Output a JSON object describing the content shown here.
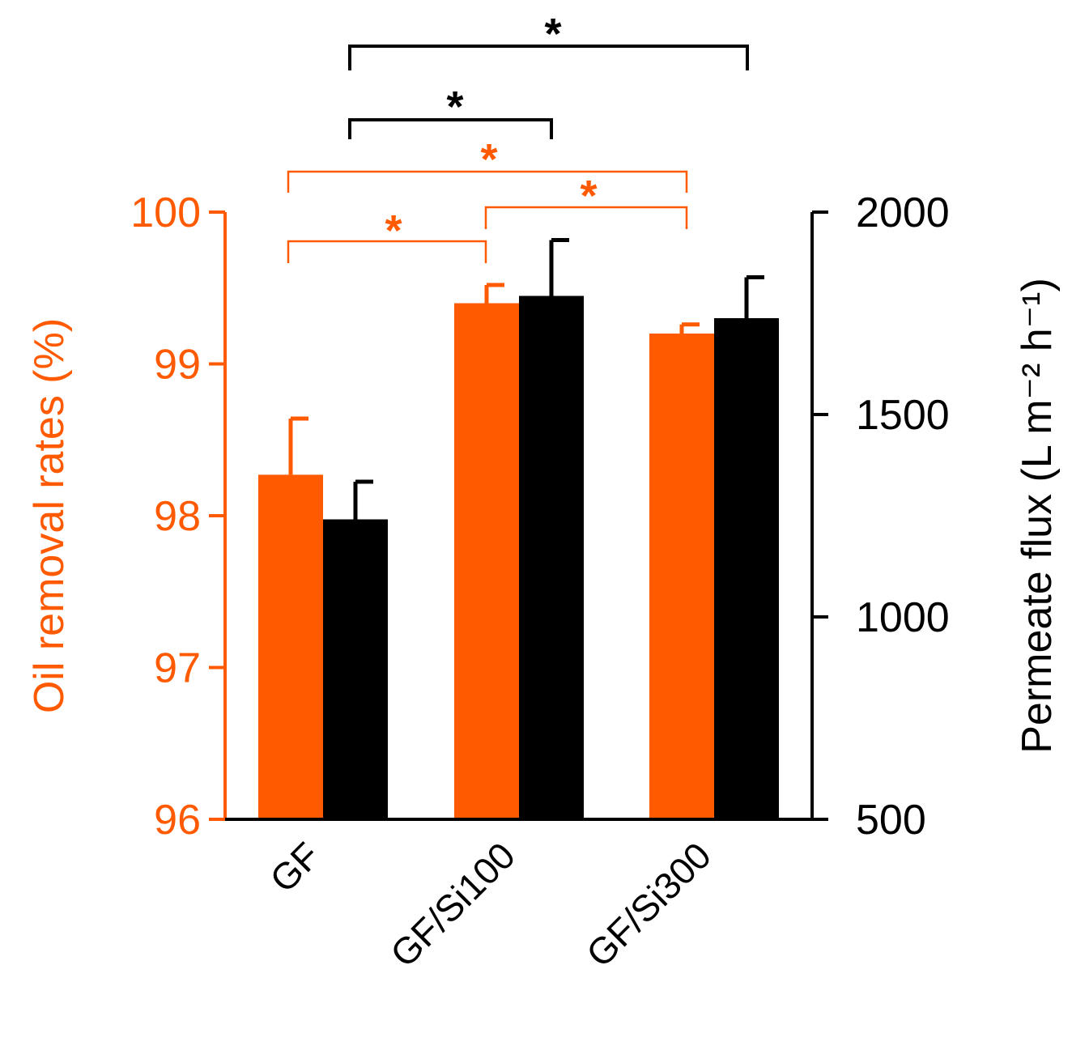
{
  "chart_data": {
    "type": "bar",
    "title": "",
    "categories": [
      "GF",
      "GF/Si100",
      "GF/Si300"
    ],
    "series": [
      {
        "name": "Oil removal rates",
        "axis": "left",
        "color": "#FF5A00",
        "values": [
          98.27,
          99.4,
          99.2
        ],
        "errors": [
          0.37,
          0.12,
          0.06
        ]
      },
      {
        "name": "Permeate flux",
        "axis": "right",
        "color": "#000000",
        "values": [
          1241,
          1793,
          1738
        ],
        "errors": [
          93,
          138,
          101
        ]
      }
    ],
    "y_left": {
      "label": "Oil removal rates (%)",
      "range": [
        96,
        100
      ],
      "ticks": [
        "96",
        "97",
        "98",
        "99",
        "100"
      ],
      "color": "#FF5A00"
    },
    "y_right": {
      "label": "Permeate flux (L m⁻² h⁻¹)",
      "range": [
        500,
        2000
      ],
      "ticks": [
        "500",
        "1000",
        "1500",
        "2000"
      ],
      "color": "#000000"
    },
    "significance": [
      {
        "series": "Permeate flux",
        "from": "GF",
        "to": "GF/Si300",
        "label": "*",
        "color": "#000000"
      },
      {
        "series": "Permeate flux",
        "from": "GF",
        "to": "GF/Si100",
        "label": "*",
        "color": "#000000"
      },
      {
        "series": "Oil removal rates",
        "from": "GF",
        "to": "GF/Si300",
        "label": "*",
        "color": "#FF5A00"
      },
      {
        "series": "Oil removal rates",
        "from": "GF/Si100",
        "to": "GF/Si300",
        "label": "*",
        "color": "#FF5A00"
      },
      {
        "series": "Oil removal rates",
        "from": "GF",
        "to": "GF/Si100",
        "label": "*",
        "color": "#FF5A00"
      }
    ],
    "grid": false,
    "legend": "none"
  }
}
